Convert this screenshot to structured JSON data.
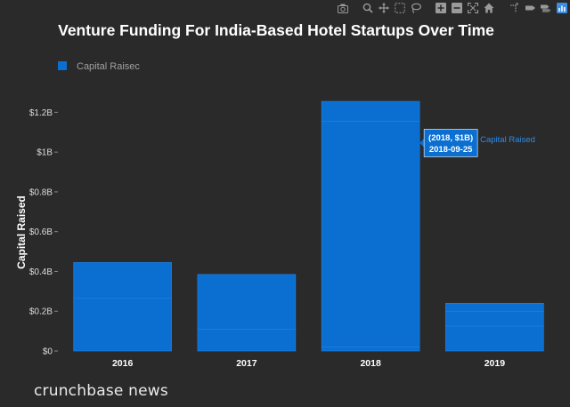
{
  "chart_data": {
    "type": "bar",
    "title": "Venture Funding For India-Based Hotel Startups Over Time",
    "ylabel": "Capital Raised",
    "xlabel": "",
    "categories": [
      "2016",
      "2017",
      "2018",
      "2019"
    ],
    "series": [
      {
        "name": "Capital Raised",
        "values": [
          0.445,
          0.385,
          1.255,
          0.24
        ],
        "segments": [
          [
            0.265,
            0.18
          ],
          [
            0.11,
            0.275
          ],
          [
            0.02,
            1.135,
            0.1
          ],
          [
            0.125,
            0.075,
            0.04
          ]
        ]
      }
    ],
    "ylim": [
      0,
      1.3
    ],
    "yticks": [
      {
        "value": 0,
        "label": "$0"
      },
      {
        "value": 0.2,
        "label": "$0.2B"
      },
      {
        "value": 0.4,
        "label": "$0.4B"
      },
      {
        "value": 0.6,
        "label": "$0.6B"
      },
      {
        "value": 0.8,
        "label": "$0.8B"
      },
      {
        "value": 1.0,
        "label": "$1B"
      },
      {
        "value": 1.2,
        "label": "$1.2B"
      }
    ],
    "legend": {
      "position": "top-left",
      "label": "Capital Raisec"
    },
    "grid": false,
    "tooltip": {
      "category": "2018",
      "value": 1.135,
      "line1": "(2018, $1B)",
      "line2": "2018-09-25",
      "series_label": "Capital Raised"
    },
    "colors": {
      "background": "#2a2a2a",
      "bar": "#0a6fd1",
      "bar_edge": "#2582e0",
      "text": "#ffffff",
      "axis_text": "#dddddd",
      "tooltip_bg": "#0a6fd1",
      "legend_text": "#a0a0a0"
    }
  },
  "branding": {
    "text": "crunchbase news"
  },
  "toolbar": {
    "icons": [
      "camera-icon",
      "zoom-icon",
      "pan-icon",
      "box-select-icon",
      "lasso-icon",
      "zoom-in-icon",
      "zoom-out-icon",
      "autoscale-icon",
      "home-icon",
      "spike-lines-icon",
      "hover-closest-icon",
      "hover-compare-icon",
      "plotly-logo-icon"
    ]
  }
}
